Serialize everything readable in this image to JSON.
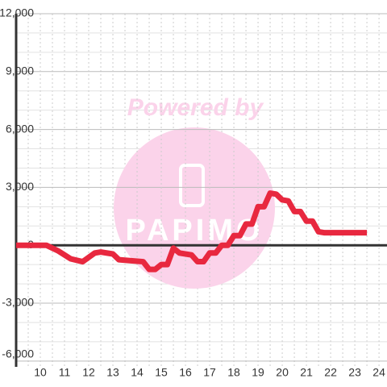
{
  "chart_data": {
    "type": "line",
    "watermark": {
      "text": "Powered by",
      "brand": "PAPIMO"
    },
    "x": [
      9,
      10.25,
      10.75,
      11.25,
      11.75,
      12.25,
      12.5,
      13,
      13.25,
      13.75,
      14.25,
      14.5,
      14.75,
      15,
      15.25,
      15.5,
      15.75,
      16.25,
      16.5,
      16.75,
      17,
      17.25,
      17.5,
      17.75,
      18,
      18.25,
      18.5,
      18.75,
      19,
      19.25,
      19.5,
      19.75,
      20,
      20.25,
      20.5,
      20.75,
      21,
      21.25,
      21.5,
      21.75,
      22,
      23.5
    ],
    "values": [
      0,
      0,
      -300,
      -700,
      -850,
      -400,
      -350,
      -450,
      -750,
      -800,
      -850,
      -1250,
      -1250,
      -1000,
      -1000,
      -150,
      -400,
      -500,
      -850,
      -850,
      -400,
      -400,
      0,
      0,
      500,
      500,
      1100,
      1100,
      2000,
      2000,
      2700,
      2650,
      2350,
      2300,
      1750,
      1750,
      1250,
      1250,
      700,
      650,
      650,
      650
    ],
    "color": "#e8283f",
    "xlim": [
      9,
      24.33
    ],
    "xticks": [
      10,
      11,
      12,
      13,
      14,
      15,
      16,
      17,
      18,
      19,
      20,
      21,
      22,
      23,
      24
    ],
    "xminor": [
      9.5,
      10.5,
      11.5,
      12.5,
      13.5,
      14.5,
      15.5,
      16.5,
      17.5,
      18.5,
      19.5,
      20.5,
      21.5,
      22.5,
      23.5
    ],
    "ylim": [
      -6300,
      12000
    ],
    "yticks": [
      {
        "value": -6000,
        "label": "-6,000"
      },
      {
        "value": -3000,
        "label": "-3,000"
      },
      0,
      {
        "value": 3000,
        "label": "3,000"
      },
      {
        "value": 6000,
        "label": "6,000"
      },
      {
        "value": 9000,
        "label": "9,000"
      },
      {
        "value": 12000,
        "label": "12,000"
      }
    ],
    "yminor": [
      -5000,
      -4000,
      -2000,
      -1000,
      1000,
      2000,
      4000,
      5000,
      7000,
      8000,
      10000,
      11000
    ],
    "grid": true
  }
}
